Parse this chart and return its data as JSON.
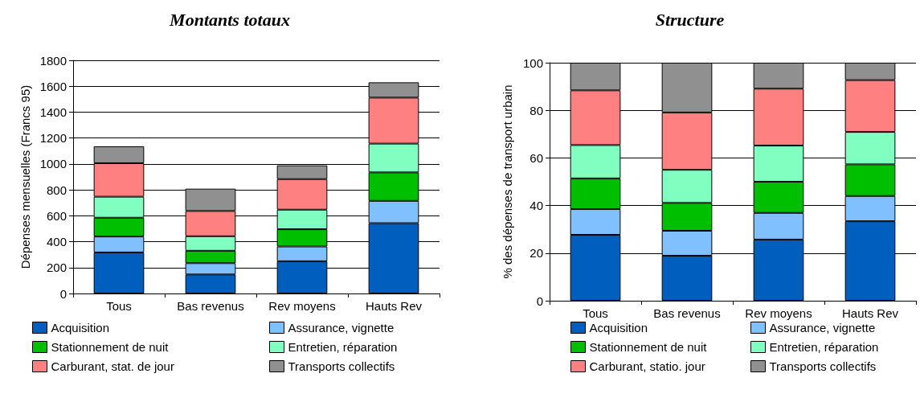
{
  "chart_data": [
    {
      "type": "bar",
      "title": "Montants totaux",
      "ylabel": "Dépenses mensuelles (Francs 95)",
      "categories": [
        "Tous",
        "Bas revenus",
        "Rev moyens",
        "Hauts Rev"
      ],
      "stacked": true,
      "ylim": [
        0,
        1800
      ],
      "yticks": [
        0,
        200,
        400,
        600,
        800,
        1000,
        1200,
        1400,
        1600,
        1800
      ],
      "grid": "y",
      "legend": "bottom",
      "series": [
        {
          "name": "Acquisition",
          "color": "#005ebe",
          "values": [
            317,
            147,
            249,
            543
          ]
        },
        {
          "name": "Assurance, vignette",
          "color": "#80c0ff",
          "values": [
            123,
            87,
            114,
            172
          ]
        },
        {
          "name": "Stationnement de nuit",
          "color": "#00be00",
          "values": [
            145,
            96,
            133,
            220
          ]
        },
        {
          "name": "Entretien, réparation",
          "color": "#80ffc0",
          "values": [
            162,
            112,
            151,
            222
          ]
        },
        {
          "name": "Carburant, stat. de jour",
          "color": "#ff8080",
          "values": [
            259,
            195,
            236,
            355
          ]
        },
        {
          "name": "Transports collectifs",
          "color": "#909090",
          "values": [
            130,
            172,
            106,
            118
          ]
        }
      ]
    },
    {
      "type": "bar",
      "title": "Structure",
      "ylabel": "% des dépenses de transport urbain",
      "categories": [
        "Tous",
        "Bas revenus",
        "Rev moyens",
        "Hauts Rev"
      ],
      "stacked": true,
      "ylim": [
        0,
        100
      ],
      "yticks": [
        0,
        20,
        40,
        60,
        80,
        100
      ],
      "grid": "y",
      "legend": "bottom",
      "series": [
        {
          "name": "Acquisition",
          "color": "#005ebe",
          "values": [
            27.7,
            18.9,
            25.7,
            33.4
          ]
        },
        {
          "name": "Assurance, vignette",
          "color": "#80c0ff",
          "values": [
            10.8,
            10.5,
            11.2,
            10.6
          ]
        },
        {
          "name": "Stationnement de nuit",
          "color": "#00be00",
          "values": [
            12.9,
            11.7,
            13.1,
            13.3
          ]
        },
        {
          "name": "Entretien, réparation",
          "color": "#80ffc0",
          "values": [
            14.0,
            13.9,
            15.2,
            13.6
          ]
        },
        {
          "name": "Carburant, statio. jour",
          "color": "#ff8080",
          "values": [
            23.0,
            24.1,
            23.9,
            21.8
          ]
        },
        {
          "name": "Transports collectifs",
          "color": "#909090",
          "values": [
            11.6,
            20.9,
            10.9,
            7.3
          ]
        }
      ]
    }
  ]
}
